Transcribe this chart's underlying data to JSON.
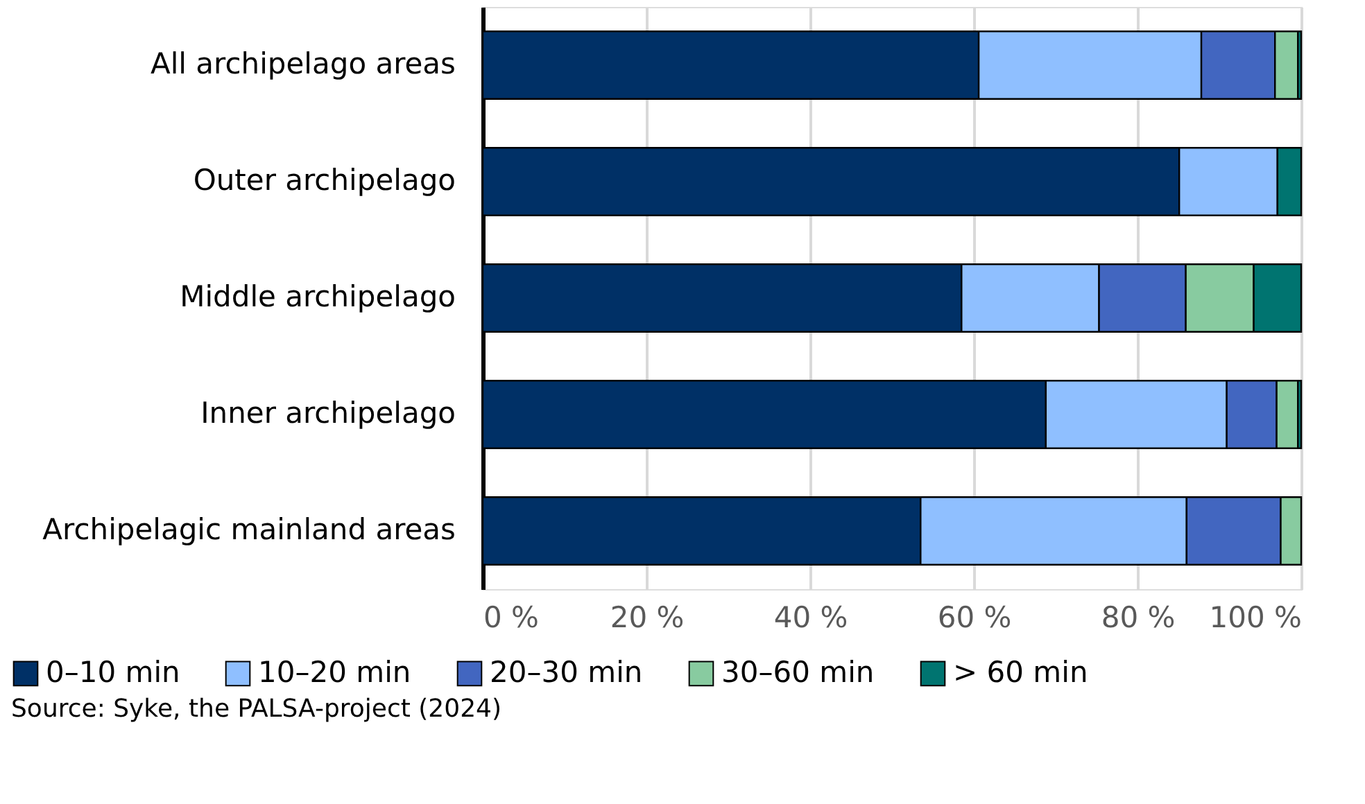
{
  "chart_data": {
    "type": "bar",
    "orientation": "horizontal",
    "stacked": true,
    "categories": [
      "All archipelago areas",
      "Outer archipelago",
      "Middle archipelago",
      "Inner archipelago",
      "Archipelagic mainland areas"
    ],
    "series": [
      {
        "name": "0–10 min",
        "color": "#003066",
        "values": [
          60.6,
          85.1,
          58.5,
          68.8,
          53.5
        ]
      },
      {
        "name": "10–20 min",
        "color": "#8fbfff",
        "values": [
          27.2,
          12.0,
          16.8,
          22.1,
          32.5
        ]
      },
      {
        "name": "20–30 min",
        "color": "#4266c0",
        "values": [
          9.0,
          null,
          10.6,
          6.1,
          11.5
        ]
      },
      {
        "name": "30–60 min",
        "color": "#88cba0",
        "values": [
          2.8,
          null,
          8.3,
          2.6,
          2.5
        ]
      },
      {
        "name": "> 60 min",
        "color": "#007470",
        "values": [
          0.4,
          2.9,
          5.8,
          0.4,
          null
        ]
      }
    ],
    "xlim": [
      0,
      100
    ],
    "xticks": [
      {
        "value": 0,
        "label": "0 %"
      },
      {
        "value": 20,
        "label": "20 %"
      },
      {
        "value": 40,
        "label": "40 %"
      },
      {
        "value": 60,
        "label": "60 %"
      },
      {
        "value": 80,
        "label": "80 %"
      },
      {
        "value": 100,
        "label": "100 %"
      }
    ],
    "grid": "x",
    "legend": "bottom",
    "annotations": [
      "Source: Syke, the PALSA-project (2024)"
    ]
  }
}
